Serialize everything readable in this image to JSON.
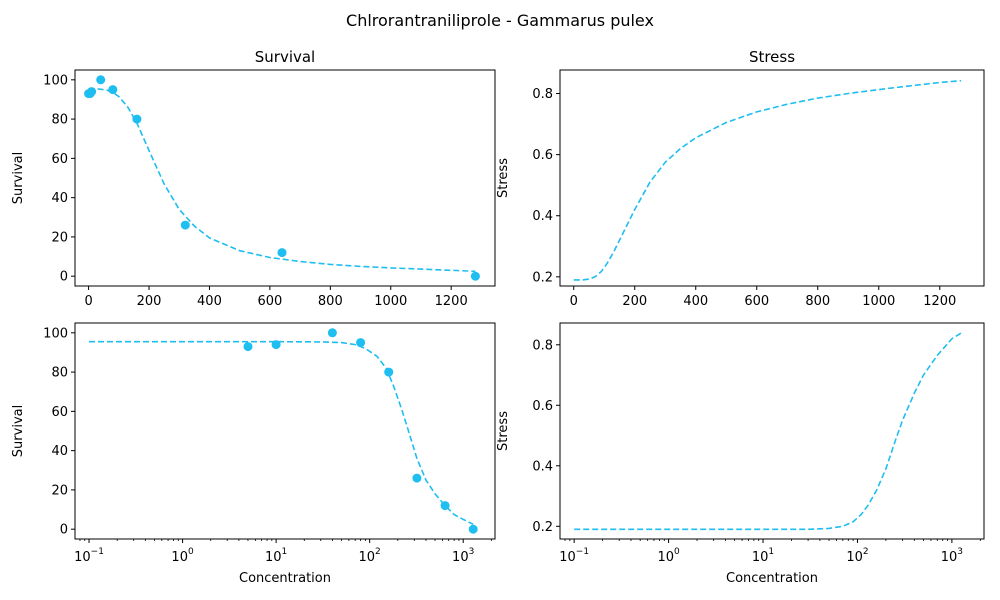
{
  "figure": {
    "title": "Chlrorantraniliprole - Gammarus pulex",
    "colors": {
      "series": "#1EBEF0",
      "axis": "#000000"
    }
  },
  "chart_data": [
    {
      "type": "scatter",
      "title": "Survival",
      "xlabel": "",
      "ylabel": "Survival",
      "xscale": "linear",
      "xlim": [
        -45,
        1345
      ],
      "ylim": [
        -5,
        105
      ],
      "xticks": [
        0,
        200,
        400,
        600,
        800,
        1000,
        1200
      ],
      "xtick_labels": [
        "0",
        "200",
        "400",
        "600",
        "800",
        "1000",
        "1200"
      ],
      "yticks": [
        0,
        20,
        40,
        60,
        80,
        100
      ],
      "ytick_labels": [
        "0",
        "20",
        "40",
        "60",
        "80",
        "100"
      ],
      "points": {
        "x": [
          0.1,
          5,
          10,
          40,
          80,
          160,
          320,
          640,
          1280
        ],
        "y": [
          93,
          93,
          94,
          100,
          95,
          80,
          26,
          12,
          0
        ]
      },
      "curve": {
        "x": [
          0.1,
          30,
          60,
          80,
          100,
          130,
          160,
          200,
          250,
          300,
          350,
          400,
          500,
          600,
          700,
          800,
          900,
          1000,
          1100,
          1200,
          1280
        ],
        "y": [
          95.5,
          95.4,
          94.8,
          93.6,
          91.5,
          86,
          78,
          64,
          47,
          34,
          25.5,
          19.5,
          13,
          9.5,
          7.5,
          6,
          5,
          4.2,
          3.6,
          3,
          2.5
        ]
      },
      "grid": false
    },
    {
      "type": "line",
      "title": "Stress",
      "xlabel": "",
      "ylabel": "Stress",
      "xscale": "linear",
      "xlim": [
        -45,
        1345
      ],
      "ylim": [
        0.17,
        0.877
      ],
      "xticks": [
        0,
        200,
        400,
        600,
        800,
        1000,
        1200
      ],
      "xtick_labels": [
        "0",
        "200",
        "400",
        "600",
        "800",
        "1000",
        "1200"
      ],
      "yticks": [
        0.2,
        0.4,
        0.6,
        0.8
      ],
      "ytick_labels": [
        "0.2",
        "0.4",
        "0.6",
        "0.8"
      ],
      "curve": {
        "x": [
          0.1,
          30,
          50,
          70,
          90,
          110,
          130,
          150,
          175,
          200,
          250,
          300,
          350,
          400,
          500,
          600,
          700,
          800,
          900,
          1000,
          1100,
          1200,
          1270
        ],
        "y": [
          0.19,
          0.19,
          0.193,
          0.2,
          0.217,
          0.245,
          0.28,
          0.32,
          0.37,
          0.42,
          0.51,
          0.575,
          0.62,
          0.655,
          0.705,
          0.74,
          0.765,
          0.785,
          0.8,
          0.813,
          0.825,
          0.836,
          0.842
        ]
      },
      "grid": false
    },
    {
      "type": "scatter",
      "title": "",
      "xlabel": "Concentration",
      "ylabel": "Survival",
      "xscale": "log",
      "xlim_log10": [
        -1.15,
        3.34
      ],
      "ylim": [
        -5,
        105
      ],
      "xticks_log10": [
        -1,
        0,
        1,
        2,
        3
      ],
      "xtick_exponents": [
        "−1",
        "0",
        "1",
        "2",
        "3"
      ],
      "yticks": [
        0,
        20,
        40,
        60,
        80,
        100
      ],
      "ytick_labels": [
        "0",
        "20",
        "40",
        "60",
        "80",
        "100"
      ],
      "points": {
        "x": [
          5,
          10,
          40,
          80,
          160,
          320,
          640,
          1280
        ],
        "y": [
          93,
          94,
          100,
          95,
          80,
          26,
          12,
          0
        ]
      },
      "curve": {
        "x": [
          0.1,
          1,
          10,
          30,
          50,
          70,
          90,
          120,
          150,
          180,
          220,
          260,
          320,
          400,
          500,
          640,
          800,
          1000,
          1280
        ],
        "y": [
          95.5,
          95.5,
          95.5,
          95.4,
          95,
          94,
          92,
          88,
          82,
          73,
          61,
          50,
          36,
          25,
          18,
          12,
          7.5,
          5,
          2.5
        ]
      },
      "grid": false
    },
    {
      "type": "line",
      "title": "",
      "xlabel": "Concentration",
      "ylabel": "Stress",
      "xscale": "log",
      "xlim_log10": [
        -1.15,
        3.34
      ],
      "ylim": [
        0.158,
        0.872
      ],
      "xticks_log10": [
        -1,
        0,
        1,
        2,
        3
      ],
      "xtick_exponents": [
        "−1",
        "0",
        "1",
        "2",
        "3"
      ],
      "yticks": [
        0.2,
        0.4,
        0.6,
        0.8
      ],
      "ytick_labels": [
        "0.2",
        "0.4",
        "0.6",
        "0.8"
      ],
      "curve": {
        "x": [
          0.1,
          1,
          10,
          30,
          50,
          70,
          90,
          110,
          130,
          160,
          200,
          250,
          300,
          400,
          500,
          700,
          1000,
          1270
        ],
        "y": [
          0.19,
          0.19,
          0.19,
          0.19,
          0.193,
          0.2,
          0.215,
          0.24,
          0.27,
          0.32,
          0.39,
          0.48,
          0.55,
          0.64,
          0.7,
          0.765,
          0.82,
          0.84
        ]
      },
      "grid": false
    }
  ]
}
